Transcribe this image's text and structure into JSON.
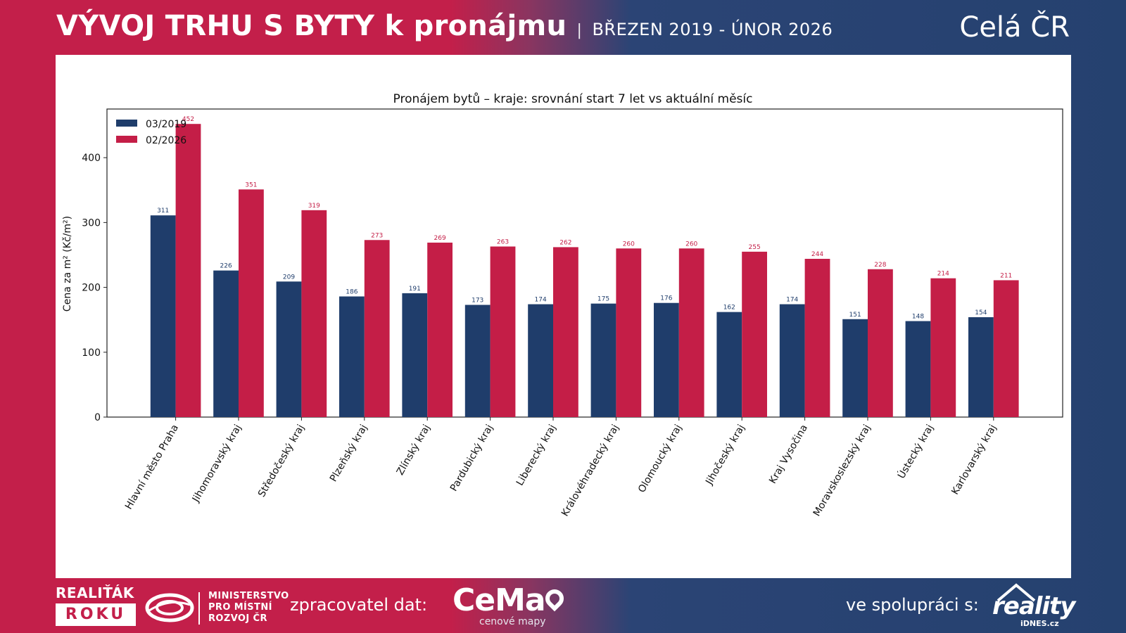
{
  "header": {
    "title": "VÝVOJ TRHU S BYTY k pronájmu",
    "separator": "|",
    "period": "BŘEZEN 2019 - ÚNOR 2026",
    "region": "Celá ČR"
  },
  "footer": {
    "award_line1": "REALIŤÁK",
    "award_line2": "ROKU",
    "ministry": "MINISTERSTVO\nPRO MÍSTNÍ\nROZVOJ ČR",
    "processor_label": "zpracovatel dat:",
    "cemap_name": "CeMa",
    "cemap_sub": "cenové mapy",
    "partner_label": "ve spolupráci s:",
    "partner_name": "reality",
    "partner_sub": "iDNES.cz"
  },
  "colors": {
    "brand_red": "#c31f4a",
    "brand_blue": "#25416f",
    "series_2019": "#1f3d6b",
    "series_2026": "#c41e47"
  },
  "chart_data": {
    "type": "bar",
    "title": "Pronájem bytů – kraje: srovnání start 7 let vs aktuální měsíc",
    "xlabel": "",
    "ylabel": "Cena za m² (Kč/m²)",
    "ylim": [
      0,
      475
    ],
    "yticks": [
      0,
      100,
      200,
      300,
      400
    ],
    "grid": false,
    "legend_position": "top-left",
    "categories": [
      "Hlavní město Praha",
      "Jihomoravský kraj",
      "Středočeský kraj",
      "Plzeňský kraj",
      "Zlínský kraj",
      "Pardubický kraj",
      "Liberecký kraj",
      "Královéhradecký kraj",
      "Olomoucký kraj",
      "Jihočeský kraj",
      "Kraj Vysočina",
      "Moravskoslezský kraj",
      "Ústecký kraj",
      "Karlovarský kraj"
    ],
    "series": [
      {
        "name": "03/2019",
        "color": "#1f3d6b",
        "values": [
          311,
          226,
          209,
          186,
          191,
          173,
          174,
          175,
          176,
          162,
          174,
          151,
          148,
          154
        ]
      },
      {
        "name": "02/2026",
        "color": "#c41e47",
        "values": [
          452,
          351,
          319,
          273,
          269,
          263,
          262,
          260,
          260,
          255,
          244,
          228,
          214,
          211
        ]
      }
    ]
  }
}
